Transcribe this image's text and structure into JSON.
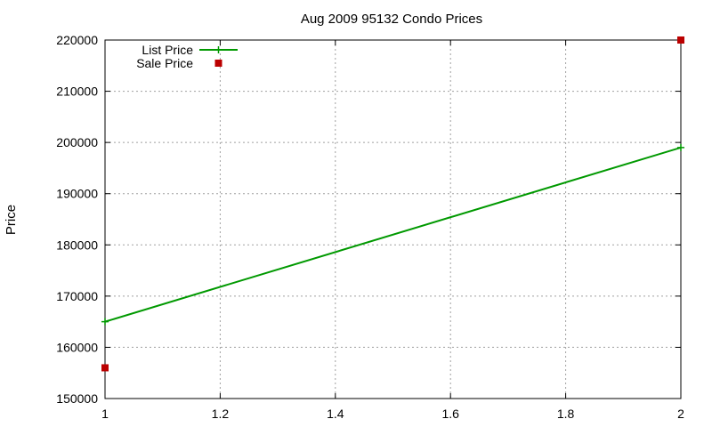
{
  "chart_data": {
    "type": "line",
    "title": "Aug 2009 95132 Condo Prices",
    "xlabel": "",
    "ylabel": "Price",
    "xlim": [
      1,
      2
    ],
    "ylim": [
      150000,
      220000
    ],
    "xticks": [
      "1",
      "1.2",
      "1.4",
      "1.6",
      "1.8",
      "2"
    ],
    "yticks": [
      "150000",
      "160000",
      "170000",
      "180000",
      "190000",
      "200000",
      "210000",
      "220000"
    ],
    "grid": true,
    "legend_position": "top-left",
    "series": [
      {
        "name": "List Price",
        "style": "linespoints",
        "color": "#009900",
        "x": [
          1,
          2
        ],
        "y": [
          165000,
          199000
        ]
      },
      {
        "name": "Sale Price",
        "style": "points",
        "color": "#bb0000",
        "x": [
          1,
          2
        ],
        "y": [
          156000,
          220000
        ]
      }
    ]
  }
}
